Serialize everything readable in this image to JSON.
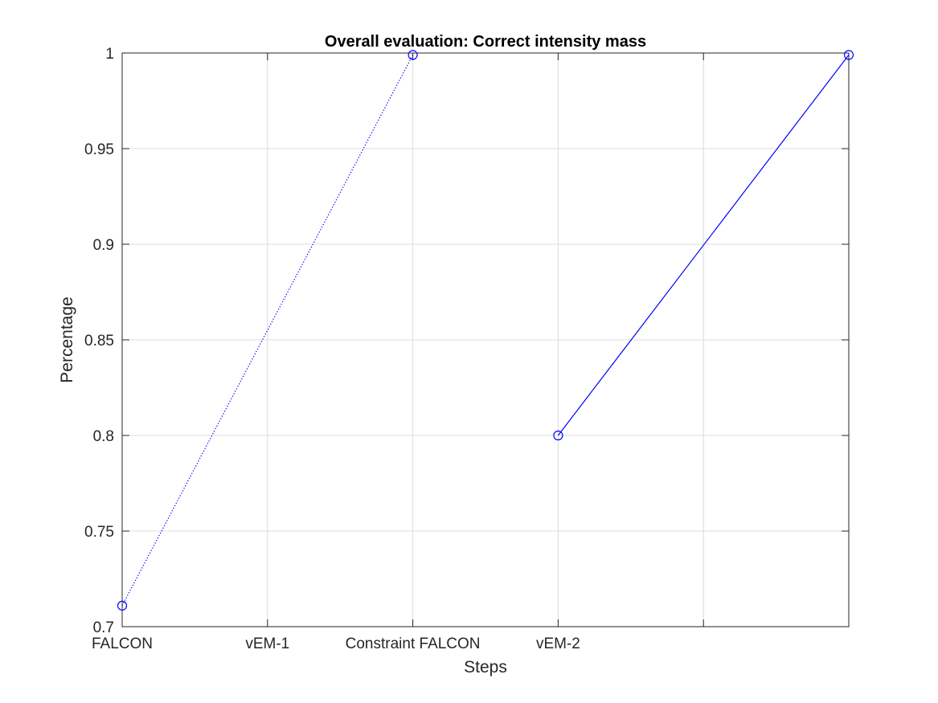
{
  "chart_data": {
    "type": "line",
    "title": "Overall evaluation: Correct intensity mass",
    "xlabel": "Steps",
    "ylabel": "Percentage",
    "categories": [
      "FALCON",
      "vEM-1",
      "Constraint FALCON",
      "vEM-2"
    ],
    "xlim": [
      1,
      6
    ],
    "ylim": [
      0.7,
      1.0
    ],
    "yticks": [
      0.7,
      0.75,
      0.8,
      0.85,
      0.9,
      0.95,
      1
    ],
    "ytick_labels": [
      "0.7",
      "0.75",
      "0.8",
      "0.85",
      "0.9",
      "0.95",
      "1"
    ],
    "grid": true,
    "series": [
      {
        "line_style": "dotted",
        "marker": "circle",
        "color": "#0000ff",
        "points": [
          {
            "x": 1,
            "y": 0.711
          },
          {
            "x": 3,
            "y": 0.999
          }
        ]
      },
      {
        "line_style": "solid",
        "marker": "circle",
        "color": "#0000ff",
        "points": [
          {
            "x": 4,
            "y": 0.8
          },
          {
            "x": 6,
            "y": 0.999
          }
        ]
      }
    ]
  },
  "colors": {
    "axis": "#262626",
    "grid": "#dcdcdc",
    "series": "#0000ff"
  }
}
